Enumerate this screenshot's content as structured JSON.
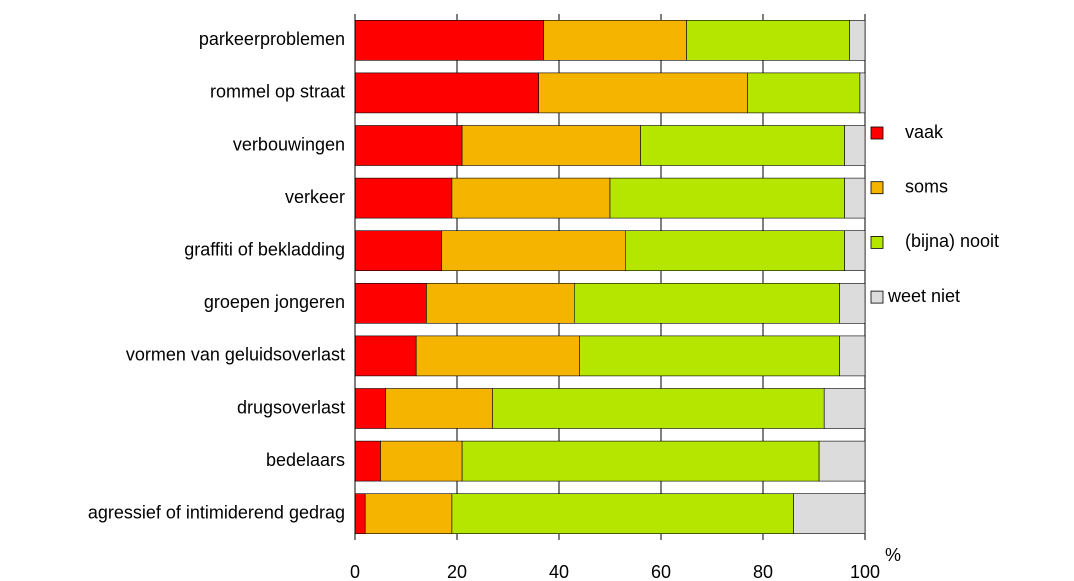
{
  "chart_data": {
    "type": "stacked_barh",
    "categories": [
      "parkeerproblemen",
      "rommel op straat",
      "verbouwingen",
      "verkeer",
      "graffiti of bekladding",
      "groepen jongeren",
      "vormen van geluidsoverlast",
      "drugsoverlast",
      "bedelaars",
      "agressief of intimiderend gedrag"
    ],
    "series": [
      {
        "name": "vaak",
        "color": "#ff0000",
        "values": [
          37,
          36,
          21,
          19,
          17,
          14,
          12,
          6,
          5,
          2
        ]
      },
      {
        "name": "soms",
        "color": "#f5b400",
        "values": [
          28,
          41,
          35,
          31,
          36,
          29,
          32,
          21,
          16,
          17
        ]
      },
      {
        "name": "(bijna) nooit",
        "color": "#b5e600",
        "values": [
          32,
          22,
          40,
          46,
          43,
          52,
          51,
          65,
          70,
          67
        ]
      },
      {
        "name": "weet niet",
        "color": "#dcdcdc",
        "values": [
          3,
          1,
          4,
          4,
          4,
          5,
          5,
          8,
          9,
          14
        ]
      }
    ],
    "xlabel": "%",
    "xlim": [
      0,
      100
    ],
    "xticks": [
      0,
      20,
      40,
      60,
      80,
      100
    ],
    "grid": true,
    "legend": "right"
  }
}
